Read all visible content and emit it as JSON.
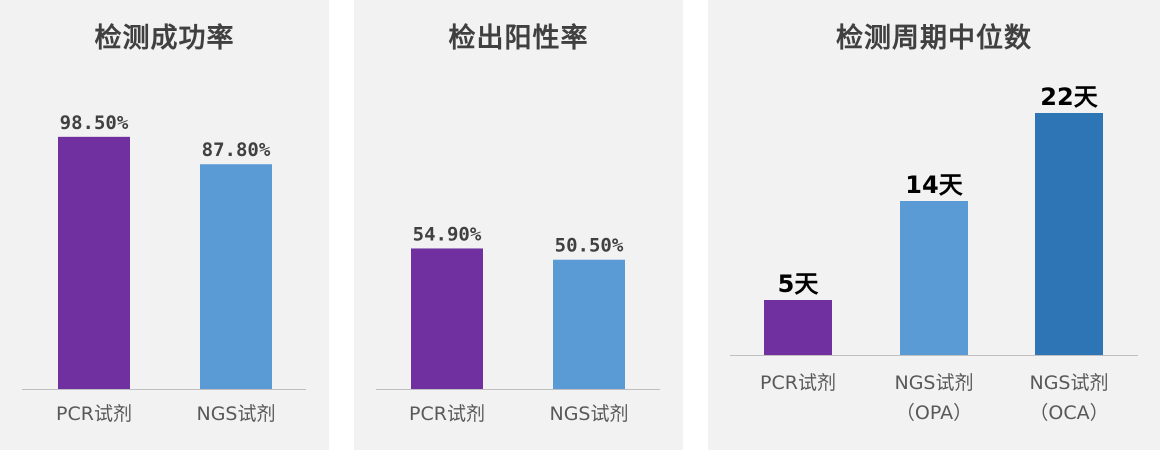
{
  "chart_data": [
    {
      "type": "bar",
      "title": "检测成功率",
      "categories": [
        "PCR试剂",
        "NGS试剂"
      ],
      "values": [
        98.5,
        87.8
      ],
      "value_labels": [
        "98.50%",
        "87.80%"
      ],
      "colors": [
        "#7030a0",
        "#5b9bd5"
      ],
      "ylim": [
        0,
        100
      ],
      "grid": false,
      "legend": "none",
      "label_style": "grey"
    },
    {
      "type": "bar",
      "title": "检出阳性率",
      "categories": [
        "PCR试剂",
        "NGS试剂"
      ],
      "values": [
        54.9,
        50.5
      ],
      "value_labels": [
        "54.90%",
        "50.50%"
      ],
      "colors": [
        "#7030a0",
        "#5b9bd5"
      ],
      "ylim": [
        0,
        100
      ],
      "grid": false,
      "legend": "none",
      "label_style": "grey"
    },
    {
      "type": "bar",
      "title": "检测周期中位数",
      "categories": [
        [
          "PCR试剂"
        ],
        [
          "NGS试剂",
          "（OPA）"
        ],
        [
          "NGS试剂",
          "（OCA）"
        ]
      ],
      "values": [
        5,
        14,
        22
      ],
      "value_labels": [
        "5天",
        "14天",
        "22天"
      ],
      "colors": [
        "#7030a0",
        "#5b9bd5",
        "#2e75b6"
      ],
      "ylim": [
        0,
        22
      ],
      "grid": false,
      "legend": "none",
      "label_style": "black"
    }
  ]
}
